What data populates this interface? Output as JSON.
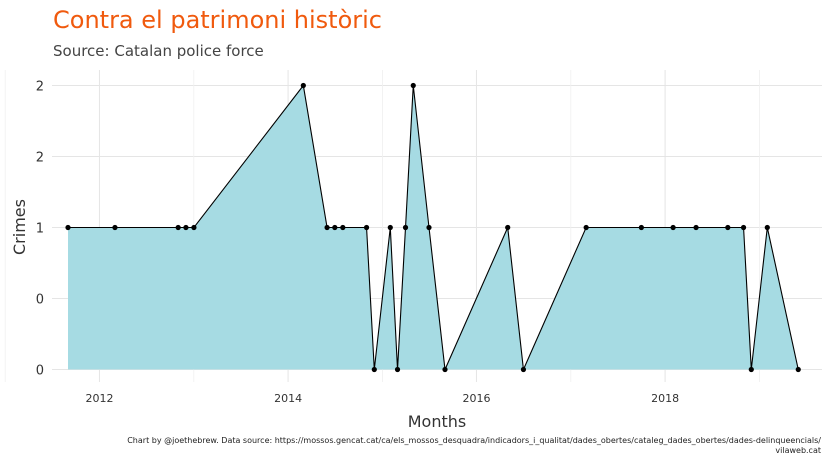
{
  "title": "Contra el patrimoni històric",
  "subtitle": "Source: Catalan police force",
  "caption": {
    "line1": "Chart by @joethebrew. Data source: https://mossos.gencat.cat/ca/els_mossos_desquadra/indicadors_i_qualitat/dades_obertes/cataleg_dades_obertes/dades-delinqueencials/",
    "line2": "vilaweb.cat"
  },
  "colors": {
    "title": "#f05a0e",
    "area_fill": "#a6dbe3",
    "line": "#000000",
    "grid": "#e5e5e5"
  },
  "chart_data": {
    "type": "area",
    "xlabel": "Months",
    "ylabel": "Crimes",
    "x_axis": "date",
    "xlim": [
      "2011-07-01",
      "2019-09-01"
    ],
    "ylim": [
      0,
      2
    ],
    "x_ticks": [
      {
        "value": "2012-01-01",
        "label": "2012"
      },
      {
        "value": "2014-01-01",
        "label": "2014"
      },
      {
        "value": "2016-01-01",
        "label": "2016"
      },
      {
        "value": "2018-01-01",
        "label": "2018"
      }
    ],
    "y_ticks": [
      {
        "value": 0,
        "label": "0"
      },
      {
        "value": 0.5,
        "label": "0"
      },
      {
        "value": 1,
        "label": "1"
      },
      {
        "value": 1.5,
        "label": "2"
      },
      {
        "value": 2,
        "label": "2"
      }
    ],
    "grid": true,
    "points": [
      {
        "x": "2011-09-01",
        "y": 1
      },
      {
        "x": "2012-03-01",
        "y": 1
      },
      {
        "x": "2012-11-01",
        "y": 1
      },
      {
        "x": "2012-12-01",
        "y": 1
      },
      {
        "x": "2013-01-01",
        "y": 1
      },
      {
        "x": "2014-03-01",
        "y": 2
      },
      {
        "x": "2014-06-01",
        "y": 1
      },
      {
        "x": "2014-07-01",
        "y": 1
      },
      {
        "x": "2014-08-01",
        "y": 1
      },
      {
        "x": "2014-11-01",
        "y": 1
      },
      {
        "x": "2014-12-01",
        "y": 0
      },
      {
        "x": "2015-02-01",
        "y": 1
      },
      {
        "x": "2015-03-01",
        "y": 0
      },
      {
        "x": "2015-04-01",
        "y": 1
      },
      {
        "x": "2015-05-01",
        "y": 2
      },
      {
        "x": "2015-07-01",
        "y": 1
      },
      {
        "x": "2015-09-01",
        "y": 0
      },
      {
        "x": "2016-05-01",
        "y": 1
      },
      {
        "x": "2016-07-01",
        "y": 0
      },
      {
        "x": "2017-03-01",
        "y": 1
      },
      {
        "x": "2017-10-01",
        "y": 1
      },
      {
        "x": "2018-02-01",
        "y": 1
      },
      {
        "x": "2018-05-01",
        "y": 1
      },
      {
        "x": "2018-09-01",
        "y": 1
      },
      {
        "x": "2018-11-01",
        "y": 1
      },
      {
        "x": "2018-12-01",
        "y": 0
      },
      {
        "x": "2019-02-01",
        "y": 1
      },
      {
        "x": "2019-06-01",
        "y": 0
      }
    ]
  }
}
